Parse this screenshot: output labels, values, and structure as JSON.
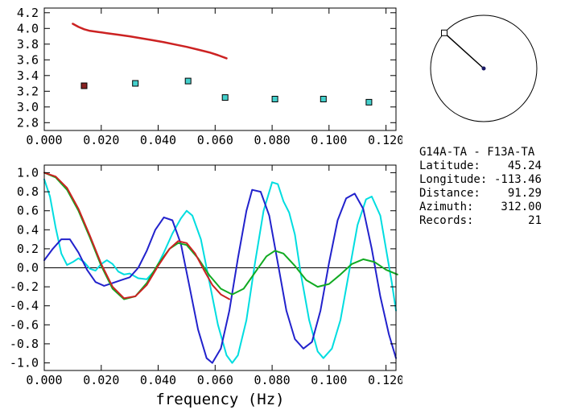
{
  "station_info": {
    "title": "G14A-TA - F13A-TA",
    "rows": [
      {
        "key": "latitude",
        "label": "Latitude:",
        "value": "45.24"
      },
      {
        "key": "longitude",
        "label": "Longitude:",
        "value": "-113.46"
      },
      {
        "key": "distance",
        "label": "Distance:",
        "value": "91.29"
      },
      {
        "key": "azimuth",
        "label": "Azimuth:",
        "value": "312.00"
      },
      {
        "key": "records",
        "label": "Records:",
        "value": "21"
      }
    ]
  },
  "azimuth_dial": {
    "azimuth_deg": 312.0
  },
  "colors": {
    "model_red": "#cc2222",
    "selected_dark_red": "#882222",
    "measure_turquoise": "#44d0cc",
    "green": "#11aa22",
    "blue": "#2222cc",
    "cyan": "#00dde0",
    "axis": "#000000"
  },
  "chart_data": [
    {
      "name": "dispersion",
      "type": "line",
      "title": "",
      "xlabel": "",
      "ylabel": "",
      "grid": false,
      "xlim": [
        0.0,
        0.1235
      ],
      "ylim": [
        2.7,
        4.26
      ],
      "xticks": {
        "values": [
          0.0,
          0.02,
          0.04,
          0.06,
          0.08,
          0.1,
          0.12
        ],
        "labels": [
          "0.000",
          "0.020",
          "0.040",
          "0.060",
          "0.080",
          "0.100",
          "0.120"
        ]
      },
      "yticks": {
        "values": [
          2.8,
          3.0,
          3.2,
          3.4,
          3.6,
          3.8,
          4.0,
          4.2
        ],
        "labels": [
          "2.8",
          "3.0",
          "3.2",
          "3.4",
          "3.6",
          "3.8",
          "4.0",
          "4.2"
        ]
      },
      "series": [
        {
          "name": "model-curve",
          "color": "#cc2222",
          "width": 2.5,
          "points": [
            [
              0.01,
              4.06
            ],
            [
              0.012,
              4.02
            ],
            [
              0.014,
              3.99
            ],
            [
              0.016,
              3.97
            ],
            [
              0.019,
              3.955
            ],
            [
              0.022,
              3.94
            ],
            [
              0.026,
              3.92
            ],
            [
              0.03,
              3.9
            ],
            [
              0.034,
              3.875
            ],
            [
              0.038,
              3.85
            ],
            [
              0.042,
              3.825
            ],
            [
              0.046,
              3.795
            ],
            [
              0.05,
              3.765
            ],
            [
              0.054,
              3.73
            ],
            [
              0.058,
              3.695
            ],
            [
              0.061,
              3.66
            ],
            [
              0.064,
              3.62
            ]
          ]
        }
      ],
      "markers": [
        {
          "name": "selected-point",
          "color": "#882222",
          "points": [
            [
              0.014,
              3.27
            ]
          ]
        },
        {
          "name": "measured-points",
          "color": "#44d0cc",
          "points": [
            [
              0.032,
              3.3
            ],
            [
              0.0505,
              3.33
            ],
            [
              0.0635,
              3.12
            ],
            [
              0.081,
              3.1
            ],
            [
              0.098,
              3.1
            ],
            [
              0.114,
              3.06
            ]
          ]
        }
      ]
    },
    {
      "name": "correlation",
      "type": "line",
      "title": "",
      "xlabel": "frequency (Hz)",
      "ylabel": "",
      "grid": false,
      "zero_line": true,
      "xlim": [
        0.0,
        0.1235
      ],
      "ylim": [
        -1.08,
        1.08
      ],
      "xticks": {
        "values": [
          0.0,
          0.02,
          0.04,
          0.06,
          0.08,
          0.1,
          0.12
        ],
        "labels": [
          "0.000",
          "0.020",
          "0.040",
          "0.060",
          "0.080",
          "0.100",
          "0.120"
        ]
      },
      "yticks": {
        "values": [
          -1.0,
          -0.8,
          -0.6,
          -0.4,
          -0.2,
          0.0,
          0.2,
          0.4,
          0.6,
          0.8,
          1.0
        ],
        "labels": [
          "-1.0",
          "-0.8",
          "-0.6",
          "-0.4",
          "-0.2",
          "0.0",
          "0.2",
          "0.4",
          "0.6",
          "0.8",
          "1.0"
        ]
      },
      "series": [
        {
          "name": "cyan-correlation",
          "color": "#00dde0",
          "width": 2,
          "points": [
            [
              0.0,
              0.93
            ],
            [
              0.002,
              0.75
            ],
            [
              0.004,
              0.42
            ],
            [
              0.006,
              0.15
            ],
            [
              0.008,
              0.03
            ],
            [
              0.01,
              0.06
            ],
            [
              0.012,
              0.1
            ],
            [
              0.014,
              0.06
            ],
            [
              0.016,
              -0.01
            ],
            [
              0.018,
              -0.03
            ],
            [
              0.02,
              0.04
            ],
            [
              0.022,
              0.08
            ],
            [
              0.024,
              0.04
            ],
            [
              0.026,
              -0.04
            ],
            [
              0.028,
              -0.07
            ],
            [
              0.03,
              -0.06
            ],
            [
              0.033,
              -0.11
            ],
            [
              0.036,
              -0.12
            ],
            [
              0.039,
              -0.02
            ],
            [
              0.042,
              0.16
            ],
            [
              0.045,
              0.36
            ],
            [
              0.048,
              0.52
            ],
            [
              0.05,
              0.6
            ],
            [
              0.052,
              0.55
            ],
            [
              0.055,
              0.3
            ],
            [
              0.058,
              -0.15
            ],
            [
              0.061,
              -0.6
            ],
            [
              0.064,
              -0.92
            ],
            [
              0.066,
              -1.0
            ],
            [
              0.068,
              -0.92
            ],
            [
              0.071,
              -0.55
            ],
            [
              0.074,
              0.05
            ],
            [
              0.077,
              0.6
            ],
            [
              0.08,
              0.9
            ],
            [
              0.082,
              0.88
            ],
            [
              0.084,
              0.7
            ],
            [
              0.086,
              0.58
            ],
            [
              0.088,
              0.35
            ],
            [
              0.09,
              -0.05
            ],
            [
              0.093,
              -0.55
            ],
            [
              0.096,
              -0.88
            ],
            [
              0.098,
              -0.95
            ],
            [
              0.101,
              -0.85
            ],
            [
              0.104,
              -0.55
            ],
            [
              0.107,
              -0.05
            ],
            [
              0.11,
              0.45
            ],
            [
              0.113,
              0.72
            ],
            [
              0.115,
              0.75
            ],
            [
              0.118,
              0.55
            ],
            [
              0.12,
              0.2
            ],
            [
              0.122,
              -0.15
            ],
            [
              0.1235,
              -0.45
            ]
          ]
        },
        {
          "name": "blue-correlation",
          "color": "#2222cc",
          "width": 2,
          "points": [
            [
              0.0,
              0.08
            ],
            [
              0.003,
              0.2
            ],
            [
              0.006,
              0.3
            ],
            [
              0.009,
              0.3
            ],
            [
              0.012,
              0.16
            ],
            [
              0.015,
              -0.02
            ],
            [
              0.018,
              -0.15
            ],
            [
              0.021,
              -0.19
            ],
            [
              0.024,
              -0.16
            ],
            [
              0.027,
              -0.13
            ],
            [
              0.03,
              -0.1
            ],
            [
              0.033,
              0.0
            ],
            [
              0.036,
              0.18
            ],
            [
              0.039,
              0.4
            ],
            [
              0.042,
              0.53
            ],
            [
              0.045,
              0.5
            ],
            [
              0.048,
              0.25
            ],
            [
              0.051,
              -0.2
            ],
            [
              0.054,
              -0.65
            ],
            [
              0.057,
              -0.95
            ],
            [
              0.059,
              -1.0
            ],
            [
              0.062,
              -0.85
            ],
            [
              0.065,
              -0.45
            ],
            [
              0.068,
              0.1
            ],
            [
              0.071,
              0.6
            ],
            [
              0.073,
              0.82
            ],
            [
              0.076,
              0.8
            ],
            [
              0.079,
              0.55
            ],
            [
              0.082,
              0.05
            ],
            [
              0.085,
              -0.45
            ],
            [
              0.088,
              -0.75
            ],
            [
              0.091,
              -0.85
            ],
            [
              0.094,
              -0.78
            ],
            [
              0.097,
              -0.45
            ],
            [
              0.1,
              0.05
            ],
            [
              0.103,
              0.5
            ],
            [
              0.106,
              0.73
            ],
            [
              0.109,
              0.78
            ],
            [
              0.112,
              0.62
            ],
            [
              0.115,
              0.2
            ],
            [
              0.118,
              -0.3
            ],
            [
              0.121,
              -0.7
            ],
            [
              0.1235,
              -0.95
            ]
          ]
        },
        {
          "name": "green-model",
          "color": "#11aa22",
          "width": 2,
          "points": [
            [
              0.0,
              1.0
            ],
            [
              0.004,
              0.95
            ],
            [
              0.008,
              0.82
            ],
            [
              0.012,
              0.6
            ],
            [
              0.016,
              0.32
            ],
            [
              0.02,
              0.02
            ],
            [
              0.024,
              -0.22
            ],
            [
              0.028,
              -0.33
            ],
            [
              0.032,
              -0.3
            ],
            [
              0.036,
              -0.16
            ],
            [
              0.04,
              0.04
            ],
            [
              0.044,
              0.2
            ],
            [
              0.047,
              0.26
            ],
            [
              0.05,
              0.24
            ],
            [
              0.054,
              0.1
            ],
            [
              0.058,
              -0.08
            ],
            [
              0.062,
              -0.22
            ],
            [
              0.066,
              -0.28
            ],
            [
              0.07,
              -0.22
            ],
            [
              0.074,
              -0.05
            ],
            [
              0.078,
              0.12
            ],
            [
              0.081,
              0.18
            ],
            [
              0.084,
              0.15
            ],
            [
              0.088,
              0.02
            ],
            [
              0.092,
              -0.13
            ],
            [
              0.096,
              -0.2
            ],
            [
              0.1,
              -0.17
            ],
            [
              0.104,
              -0.07
            ],
            [
              0.108,
              0.04
            ],
            [
              0.112,
              0.09
            ],
            [
              0.116,
              0.06
            ],
            [
              0.12,
              -0.02
            ],
            [
              0.124,
              -0.07
            ]
          ]
        },
        {
          "name": "red-model",
          "color": "#cc2222",
          "width": 2,
          "points": [
            [
              0.0,
              1.0
            ],
            [
              0.004,
              0.96
            ],
            [
              0.008,
              0.84
            ],
            [
              0.012,
              0.62
            ],
            [
              0.016,
              0.34
            ],
            [
              0.02,
              0.04
            ],
            [
              0.024,
              -0.2
            ],
            [
              0.028,
              -0.32
            ],
            [
              0.032,
              -0.3
            ],
            [
              0.036,
              -0.18
            ],
            [
              0.04,
              0.02
            ],
            [
              0.044,
              0.2
            ],
            [
              0.047,
              0.28
            ],
            [
              0.05,
              0.26
            ],
            [
              0.053,
              0.15
            ],
            [
              0.056,
              -0.02
            ],
            [
              0.059,
              -0.18
            ],
            [
              0.062,
              -0.28
            ],
            [
              0.065,
              -0.33
            ]
          ]
        }
      ],
      "markers": []
    }
  ]
}
